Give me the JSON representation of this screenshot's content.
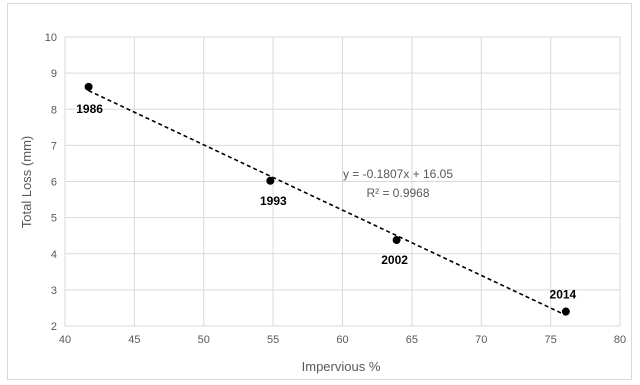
{
  "chart_data": {
    "type": "scatter",
    "title": "",
    "xlabel": "Impervious %",
    "ylabel": "Total Loss (mm)",
    "xlim": [
      40,
      80
    ],
    "ylim": [
      2,
      10
    ],
    "xticks": [
      "40",
      "45",
      "50",
      "55",
      "60",
      "65",
      "70",
      "75",
      "80"
    ],
    "yticks": [
      "2",
      "3",
      "4",
      "5",
      "6",
      "7",
      "8",
      "9",
      "10"
    ],
    "grid": true,
    "legend": "none",
    "series": [
      {
        "points": [
          {
            "x": 41.7,
            "y": 8.62,
            "label": "1986"
          },
          {
            "x": 54.8,
            "y": 6.02,
            "label": "1993"
          },
          {
            "x": 63.9,
            "y": 4.38,
            "label": "2002"
          },
          {
            "x": 76.1,
            "y": 2.4,
            "label": "2014"
          }
        ],
        "color": "#000000"
      }
    ],
    "trendline": {
      "slope": -0.1807,
      "intercept": 16.05,
      "x_range": [
        41.7,
        76.1
      ],
      "style": "dashed",
      "color": "#000000",
      "equation_label": "y = -0.1807x + 16.05",
      "r2_label": "R² = 0.9968"
    }
  }
}
